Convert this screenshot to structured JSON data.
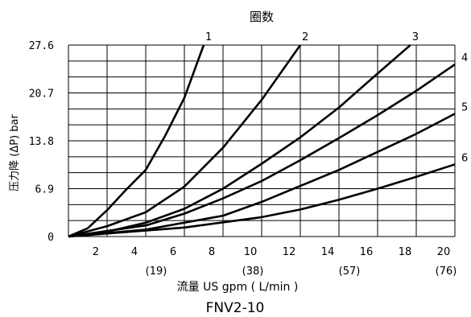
{
  "chart_data": {
    "type": "line",
    "title": "圈数",
    "subtitle": "FNV2-10",
    "xlabel": "流量 US gpm ( L/min )",
    "ylabel": "压力降 (ΔP) bar",
    "xlim": [
      0,
      20
    ],
    "ylim": [
      0,
      27.6
    ],
    "grid": true,
    "x_ticks": [
      {
        "value": 2,
        "label": "2"
      },
      {
        "value": 4,
        "label": "4"
      },
      {
        "value": 6,
        "label": "6"
      },
      {
        "value": 8,
        "label": "8"
      },
      {
        "value": 10,
        "label": "10"
      },
      {
        "value": 12,
        "label": "12"
      },
      {
        "value": 14,
        "label": "14"
      },
      {
        "value": 16,
        "label": "16"
      },
      {
        "value": 18,
        "label": "18"
      },
      {
        "value": 20,
        "label": "20"
      }
    ],
    "x_ticks_secondary": [
      {
        "value": 5,
        "label": "(19)"
      },
      {
        "value": 10,
        "label": "(38)"
      },
      {
        "value": 15,
        "label": "(57)"
      },
      {
        "value": 20,
        "label": "(76)"
      }
    ],
    "y_ticks": [
      {
        "value": 0,
        "label": "0"
      },
      {
        "value": 6.9,
        "label": "6.9"
      },
      {
        "value": 13.8,
        "label": "13.8"
      },
      {
        "value": 20.7,
        "label": "20.7"
      },
      {
        "value": 27.6,
        "label": "27.6"
      }
    ],
    "series": [
      {
        "name": "1",
        "points": [
          [
            0,
            0
          ],
          [
            1,
            1.2
          ],
          [
            2,
            3.8
          ],
          [
            3,
            6.8
          ],
          [
            4,
            9.6
          ],
          [
            5,
            14.5
          ],
          [
            6,
            20.0
          ],
          [
            7,
            27.6
          ]
        ]
      },
      {
        "name": "2",
        "points": [
          [
            0,
            0
          ],
          [
            2,
            1.5
          ],
          [
            4,
            3.5
          ],
          [
            6,
            7.2
          ],
          [
            8,
            12.8
          ],
          [
            10,
            19.7
          ],
          [
            12,
            27.6
          ]
        ]
      },
      {
        "name": "3",
        "points": [
          [
            0,
            0
          ],
          [
            2,
            0.7
          ],
          [
            4,
            2.0
          ],
          [
            6,
            4.0
          ],
          [
            8,
            6.9
          ],
          [
            10,
            10.5
          ],
          [
            12,
            14.3
          ],
          [
            14,
            18.6
          ],
          [
            16,
            23.5
          ],
          [
            17.7,
            27.6
          ]
        ]
      },
      {
        "name": "4",
        "points": [
          [
            0,
            0
          ],
          [
            4,
            1.6
          ],
          [
            6,
            3.3
          ],
          [
            8,
            5.5
          ],
          [
            10,
            8.0
          ],
          [
            12,
            11.0
          ],
          [
            14,
            14.2
          ],
          [
            16,
            17.5
          ],
          [
            18,
            21.0
          ],
          [
            20,
            24.8
          ]
        ]
      },
      {
        "name": "5",
        "points": [
          [
            0,
            0
          ],
          [
            4,
            1.0
          ],
          [
            8,
            3.0
          ],
          [
            10,
            5.0
          ],
          [
            12,
            7.3
          ],
          [
            14,
            9.6
          ],
          [
            16,
            12.2
          ],
          [
            18,
            14.8
          ],
          [
            20,
            17.7
          ]
        ]
      },
      {
        "name": "6",
        "points": [
          [
            0,
            0
          ],
          [
            6,
            1.3
          ],
          [
            10,
            2.8
          ],
          [
            12,
            3.9
          ],
          [
            14,
            5.3
          ],
          [
            16,
            6.9
          ],
          [
            18,
            8.6
          ],
          [
            20,
            10.4
          ]
        ]
      }
    ]
  }
}
